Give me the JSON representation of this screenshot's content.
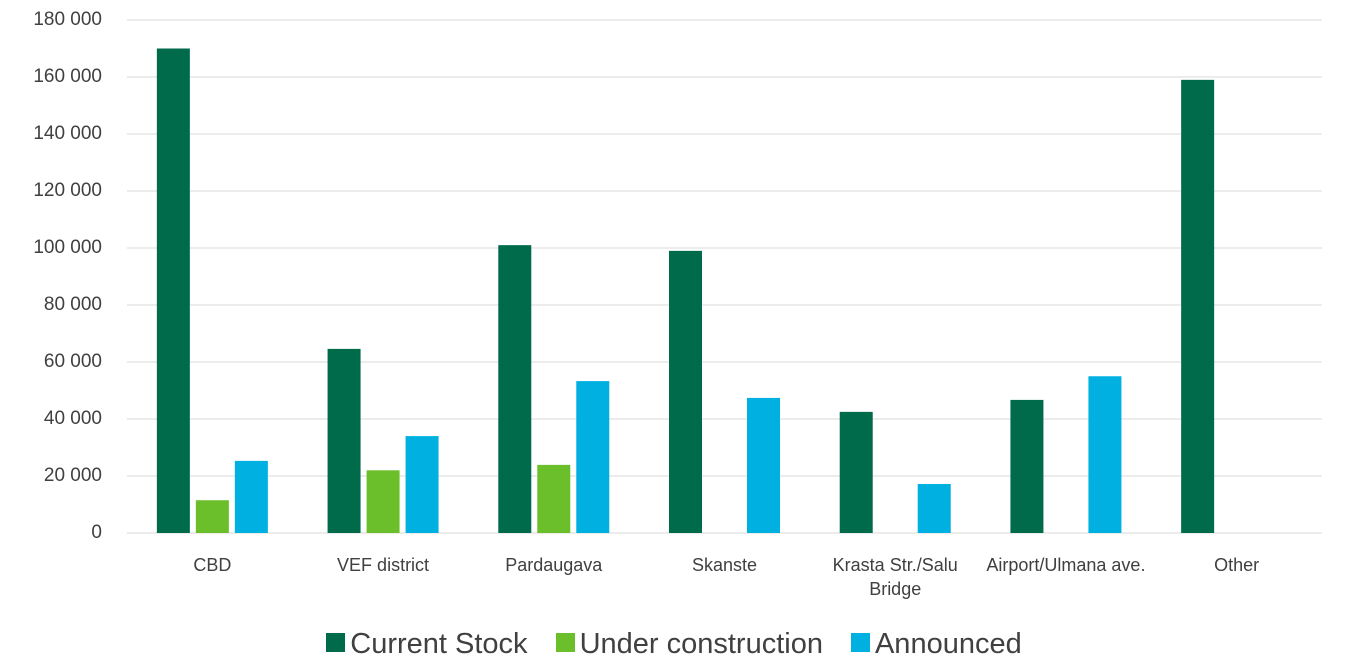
{
  "chart_data": {
    "type": "bar",
    "categories": [
      "CBD",
      "VEF district",
      "Pardaugava",
      "Skanste",
      "Krasta Str./Salu Bridge",
      "Airport/Ulmana ave.",
      "Other"
    ],
    "series": [
      {
        "name": "Current Stock",
        "color": "#006b4a",
        "values": [
          170000,
          64600,
          101000,
          99000,
          42500,
          46700,
          159000
        ]
      },
      {
        "name": "Under construction",
        "color": "#6abf2a",
        "values": [
          11500,
          22000,
          23900,
          null,
          null,
          null,
          null
        ]
      },
      {
        "name": "Announced",
        "color": "#00b0e0",
        "values": [
          25300,
          34000,
          53300,
          47400,
          17200,
          55000,
          null
        ]
      }
    ],
    "ylim": [
      0,
      180000
    ],
    "yticks": [
      0,
      {
        "value": 20000,
        "label": "20 000"
      },
      {
        "value": 40000,
        "label": "40 000"
      },
      {
        "value": 60000,
        "label": "60 000"
      },
      {
        "value": 80000,
        "label": "80 000"
      },
      {
        "value": 100000,
        "label": "100 000"
      },
      {
        "value": 120000,
        "label": "120 000"
      },
      {
        "value": 140000,
        "label": "140 000"
      },
      {
        "value": 160000,
        "label": "160 000"
      },
      {
        "value": 180000,
        "label": "180 000"
      }
    ],
    "grid": true,
    "legend": "bottom"
  }
}
